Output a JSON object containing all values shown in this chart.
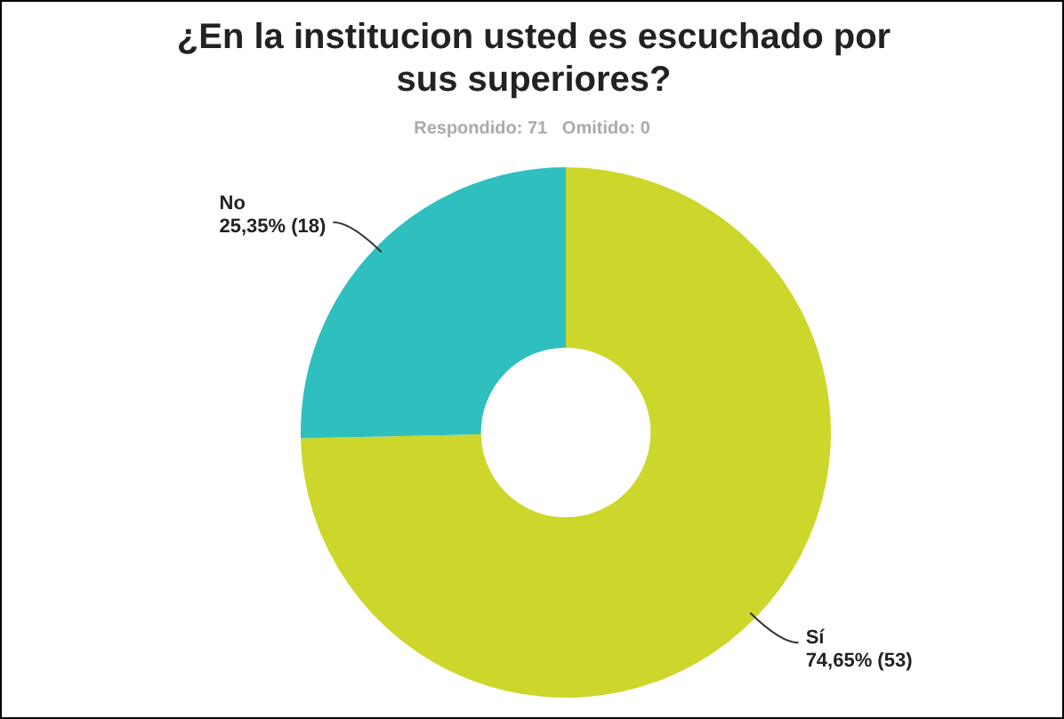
{
  "chart_data": {
    "type": "donut",
    "title": "¿En la institucion usted es escuchado por sus superiores?",
    "subtitle": "Respondido: 71   Omitido: 0",
    "categories": [
      "Sí",
      "No"
    ],
    "values": [
      53,
      18
    ],
    "colors": [
      "#cdd62a",
      "#2fbfbf"
    ],
    "value_labels": [
      "74,65% (53)",
      "25,35% (18)"
    ],
    "legend": false
  }
}
